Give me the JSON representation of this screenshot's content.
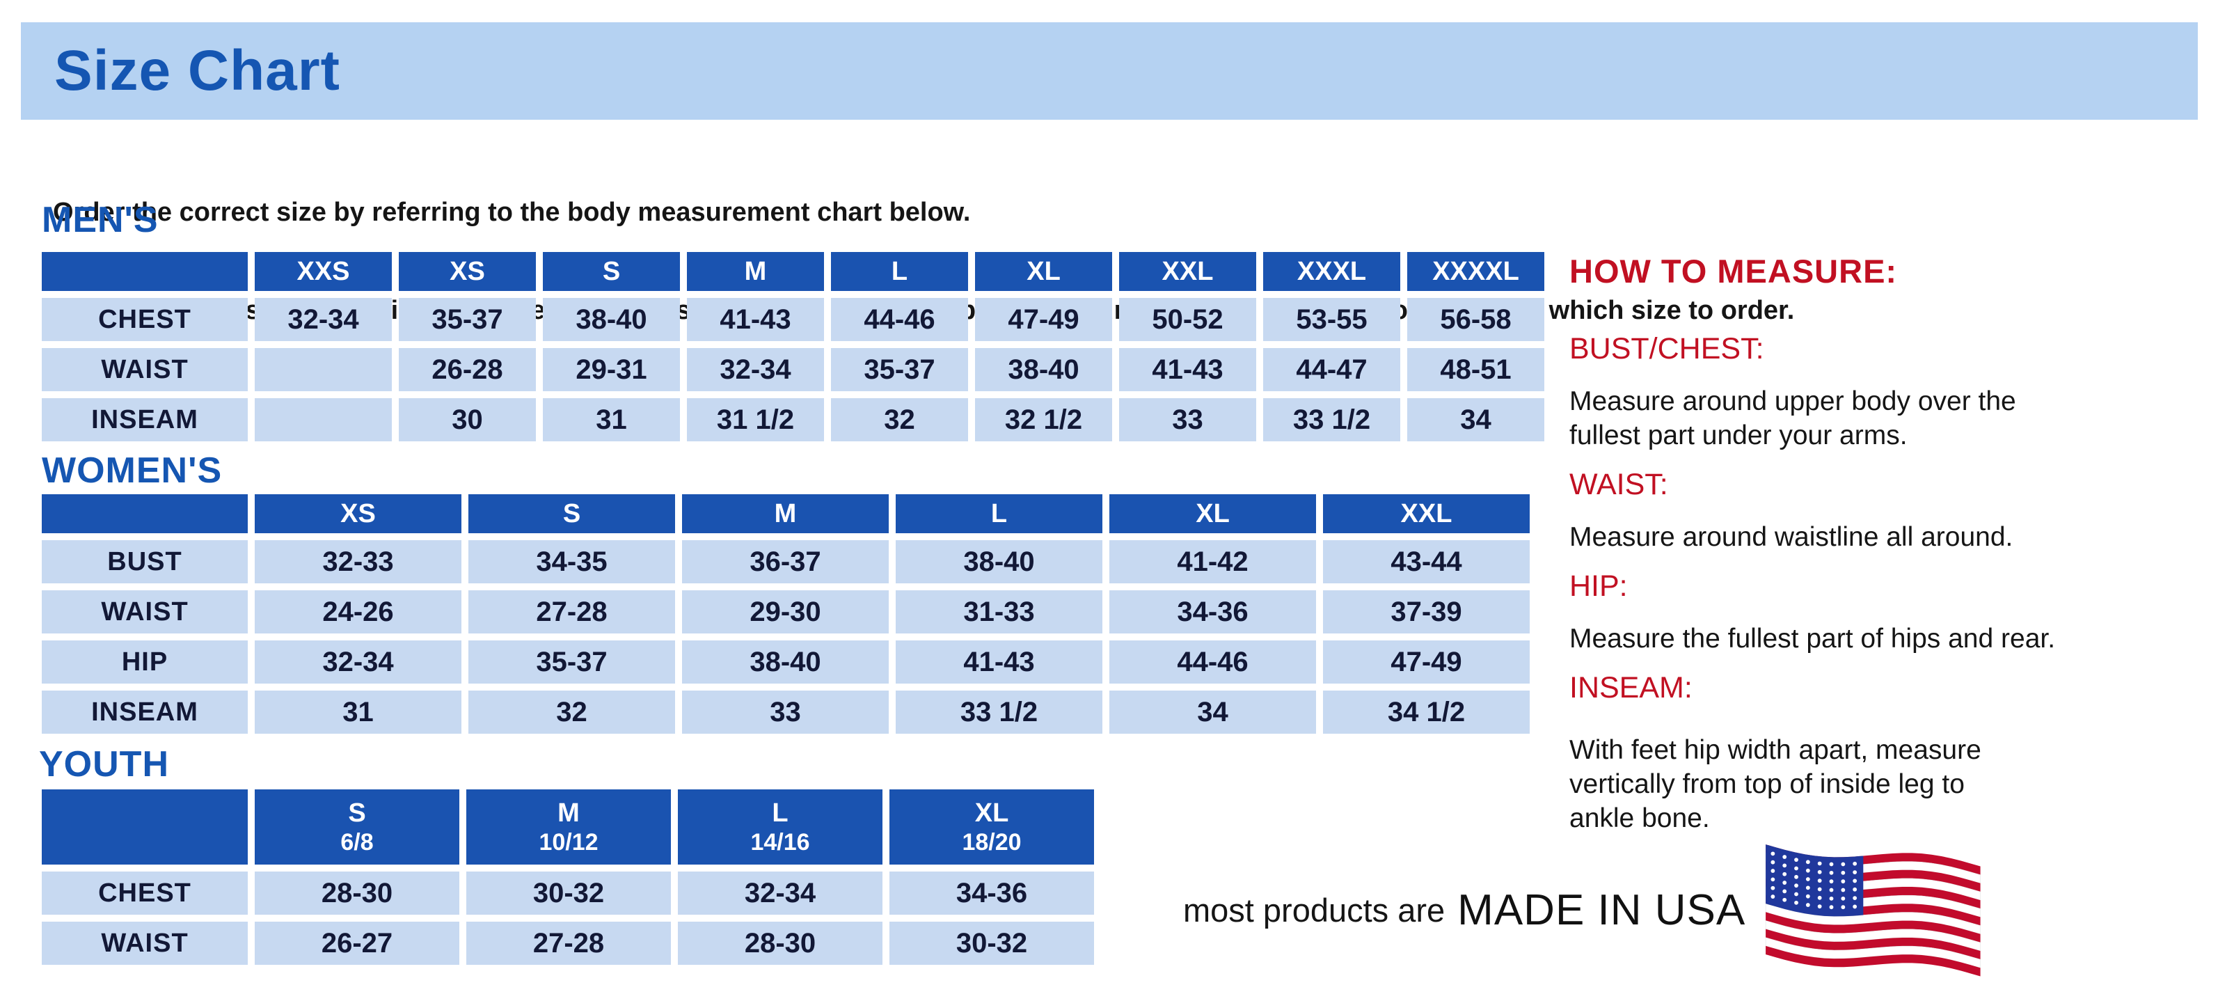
{
  "title": "Size Chart",
  "intro": {
    "line1": "Order the correct size by referring to the body measurement chart below.",
    "line2": "Measurements shown on size chart are body measurements.  Find your body measurements on the chart to determine which size to order."
  },
  "tables": [
    {
      "id": "mens",
      "heading": "MEN'S",
      "columns": [
        "XXS",
        "XS",
        "S",
        "M",
        "L",
        "XL",
        "XXL",
        "XXXL",
        "XXXXL"
      ],
      "rows": [
        {
          "label": "CHEST",
          "values": [
            "32-34",
            "35-37",
            "38-40",
            "41-43",
            "44-46",
            "47-49",
            "50-52",
            "53-55",
            "56-58"
          ]
        },
        {
          "label": "WAIST",
          "values": [
            "",
            "26-28",
            "29-31",
            "32-34",
            "35-37",
            "38-40",
            "41-43",
            "44-47",
            "48-51"
          ]
        },
        {
          "label": "INSEAM",
          "values": [
            "",
            "30",
            "31",
            "31 1/2",
            "32",
            "32 1/2",
            "33",
            "33 1/2",
            "34"
          ]
        }
      ]
    },
    {
      "id": "womens",
      "heading": "WOMEN'S",
      "columns": [
        "XS",
        "S",
        "M",
        "L",
        "XL",
        "XXL"
      ],
      "rows": [
        {
          "label": "BUST",
          "values": [
            "32-33",
            "34-35",
            "36-37",
            "38-40",
            "41-42",
            "43-44"
          ]
        },
        {
          "label": "WAIST",
          "values": [
            "24-26",
            "27-28",
            "29-30",
            "31-33",
            "34-36",
            "37-39"
          ]
        },
        {
          "label": "HIP",
          "values": [
            "32-34",
            "35-37",
            "38-40",
            "41-43",
            "44-46",
            "47-49"
          ]
        },
        {
          "label": "INSEAM",
          "values": [
            "31",
            "32",
            "33",
            "33 1/2",
            "34",
            "34 1/2"
          ]
        }
      ]
    },
    {
      "id": "youth",
      "heading": "YOUTH",
      "columns": [
        {
          "size": "S",
          "range": "6/8"
        },
        {
          "size": "M",
          "range": "10/12"
        },
        {
          "size": "L",
          "range": "14/16"
        },
        {
          "size": "XL",
          "range": "18/20"
        }
      ],
      "rows": [
        {
          "label": "CHEST",
          "values": [
            "28-30",
            "30-32",
            "32-34",
            "34-36"
          ]
        },
        {
          "label": "WAIST",
          "values": [
            "26-27",
            "27-28",
            "28-30",
            "30-32"
          ]
        }
      ]
    }
  ],
  "how_to_measure": {
    "heading": "HOW TO MEASURE:",
    "sections": [
      {
        "label": "BUST/CHEST:",
        "text": "Measure around upper body over the\nfullest part under your arms."
      },
      {
        "label": "WAIST:",
        "text": "Measure around waistline all around."
      },
      {
        "label": "HIP:",
        "text": "Measure the fullest part of hips and rear."
      },
      {
        "label": "INSEAM:",
        "text": "With feet hip width apart, measure\nvertically from top of inside leg to\nankle bone."
      }
    ]
  },
  "footer": {
    "prefix": "most products are",
    "emphasis": "MADE IN USA",
    "flag_icon": "us-flag"
  },
  "colors": {
    "banner_bg": "#b5d2f2",
    "heading_blue": "#1556b2",
    "table_header_bg": "#1a53b0",
    "cell_bg": "#c7d9f1",
    "cell_text": "#121836",
    "red": "#c11022",
    "flag_red": "#c20b2c",
    "flag_blue": "#20389c"
  }
}
